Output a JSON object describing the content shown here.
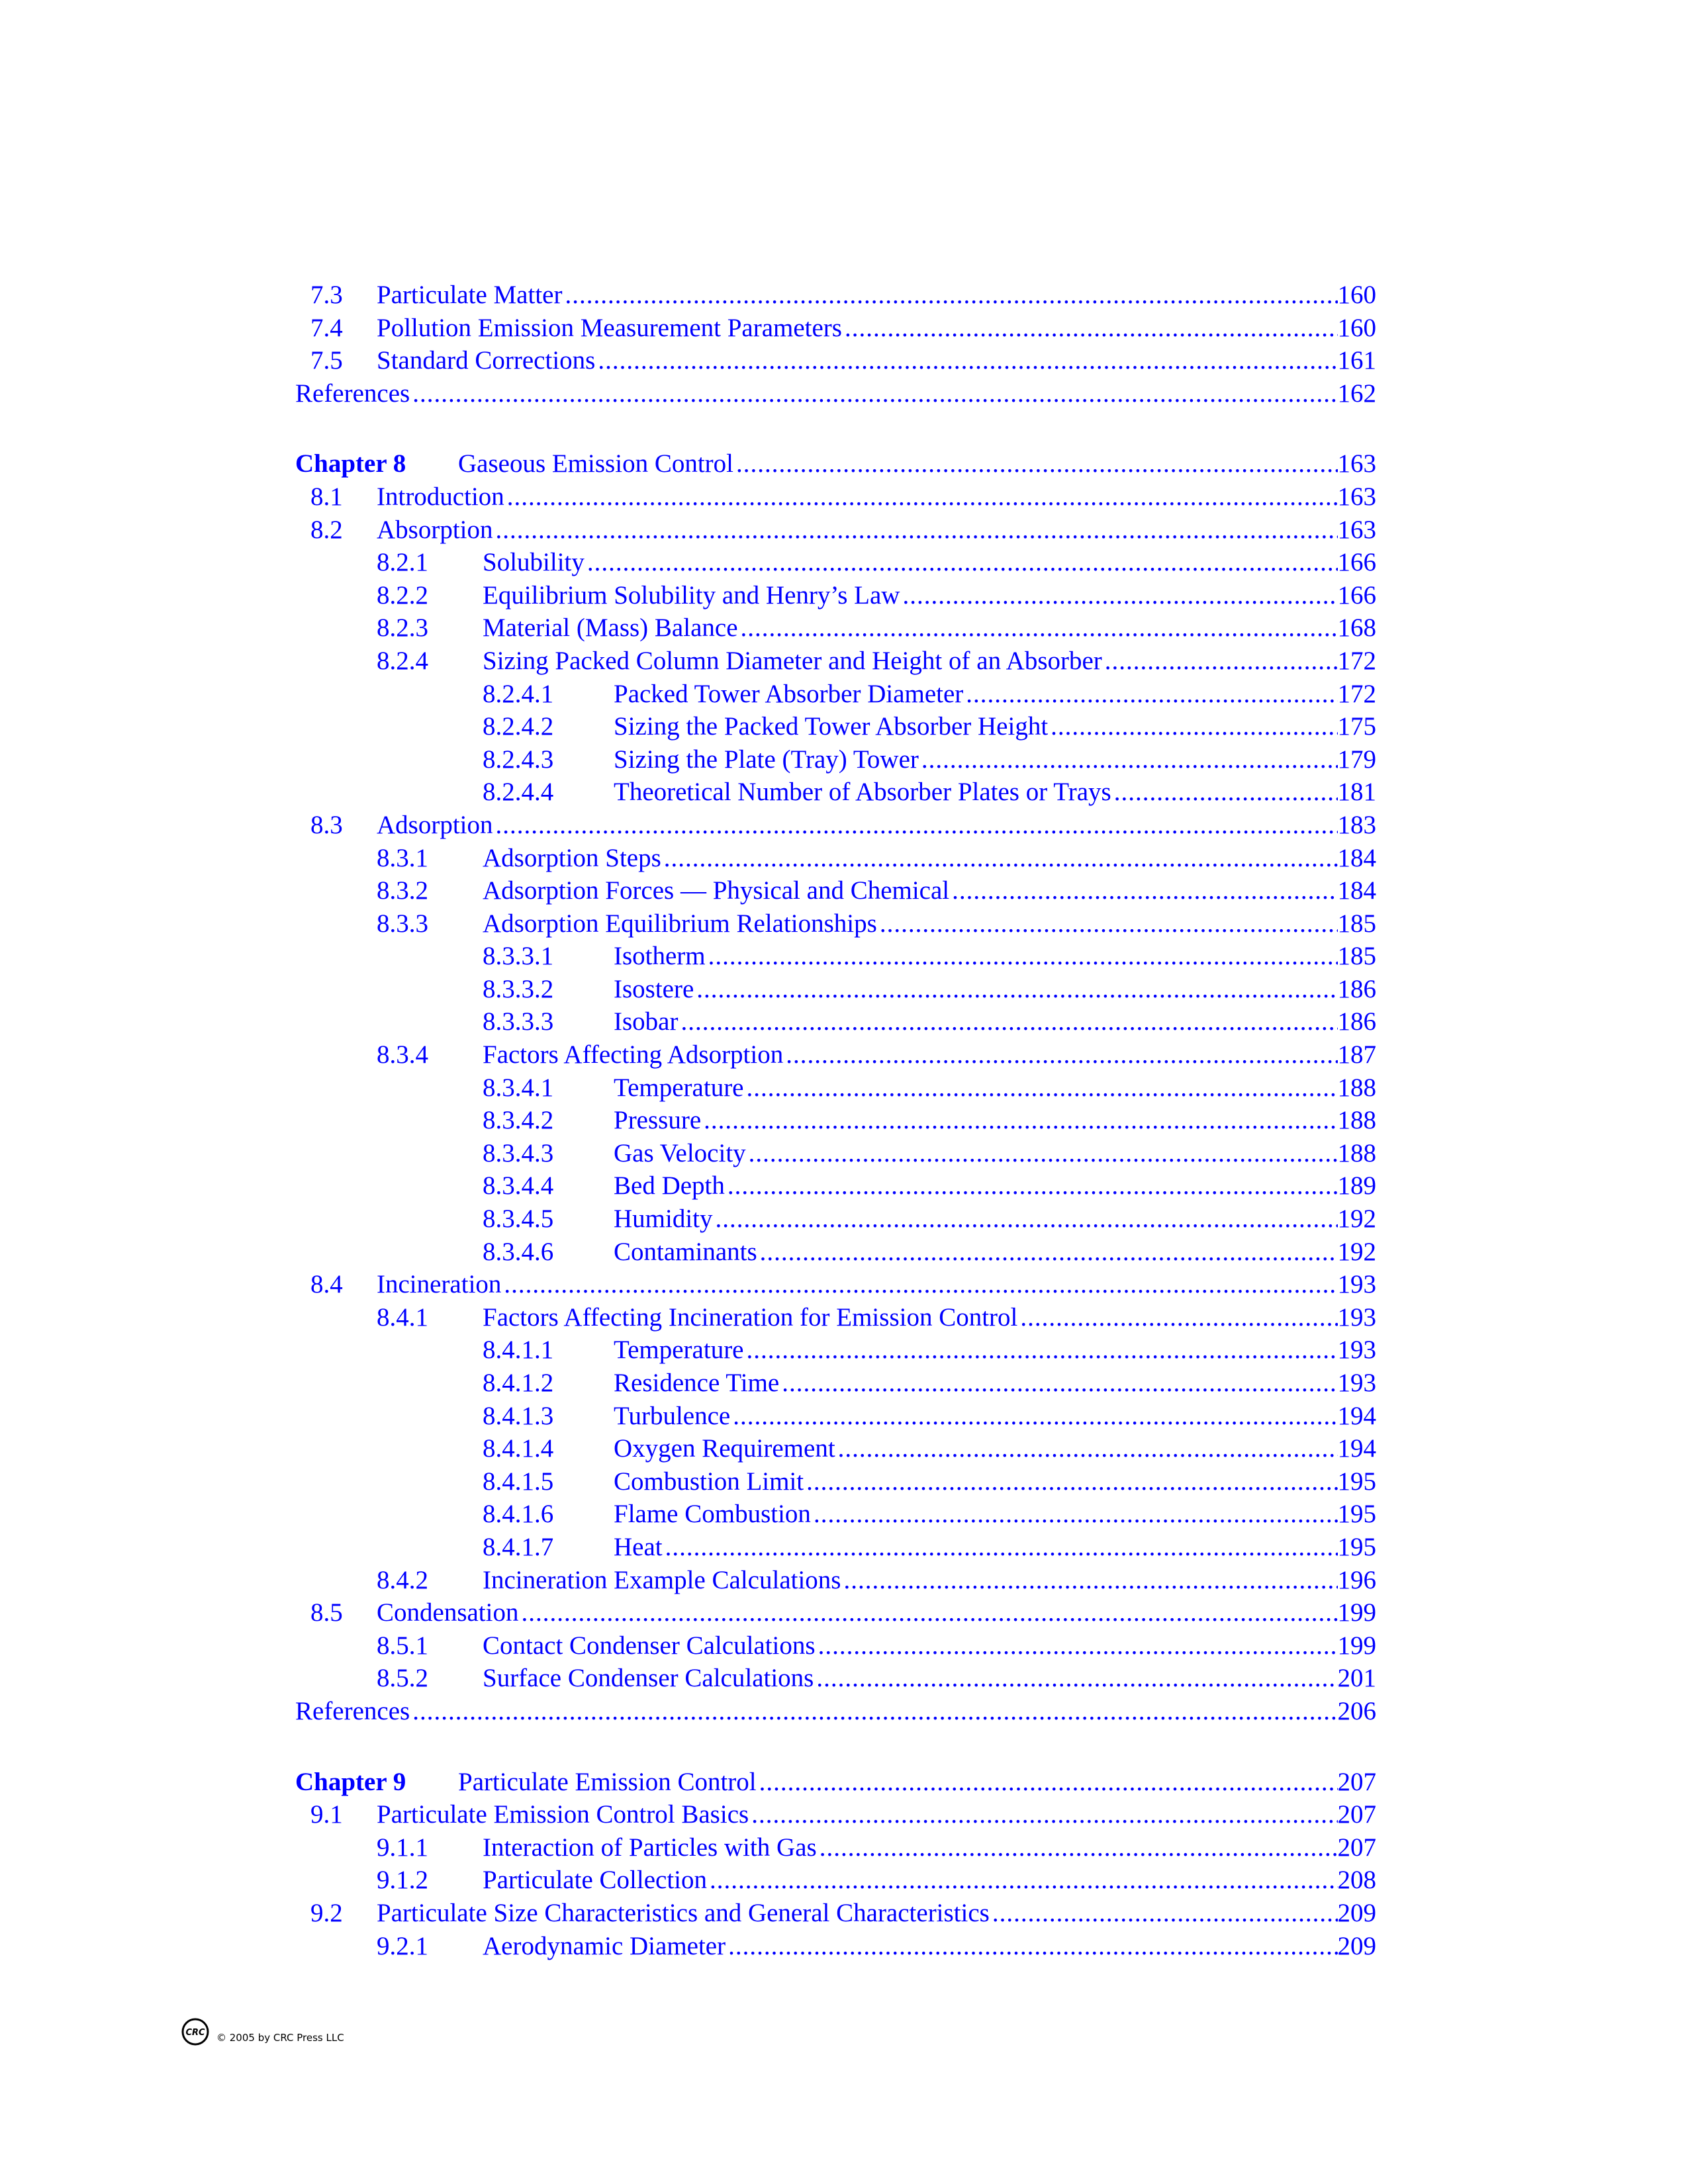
{
  "toc": [
    {
      "level": "l1",
      "num": "7.3",
      "title": "Particulate Matter",
      "page": "160"
    },
    {
      "level": "l1",
      "num": "7.4",
      "title": "Pollution Emission Measurement Parameters",
      "page": "160"
    },
    {
      "level": "l1",
      "num": "7.5",
      "title": "Standard Corrections",
      "page": "161"
    },
    {
      "level": "ref",
      "num": "",
      "title": "References",
      "page": "162"
    },
    {
      "level": "chap",
      "num": "Chapter 8",
      "title": "Gaseous Emission Control",
      "page": "163"
    },
    {
      "level": "l1",
      "num": "8.1",
      "title": "Introduction",
      "page": "163"
    },
    {
      "level": "l1",
      "num": "8.2",
      "title": "Absorption",
      "page": "163"
    },
    {
      "level": "l2",
      "num": "8.2.1",
      "title": "Solubility",
      "page": "166"
    },
    {
      "level": "l2",
      "num": "8.2.2",
      "title": "Equilibrium Solubility and Henry’s Law",
      "page": "166"
    },
    {
      "level": "l2",
      "num": "8.2.3",
      "title": "Material (Mass) Balance",
      "page": "168"
    },
    {
      "level": "l2",
      "num": "8.2.4",
      "title": "Sizing Packed Column Diameter and Height of an Absorber",
      "page": "172"
    },
    {
      "level": "l3",
      "num": "8.2.4.1",
      "title": "Packed Tower Absorber Diameter",
      "page": "172"
    },
    {
      "level": "l3",
      "num": "8.2.4.2",
      "title": "Sizing the Packed Tower Absorber Height",
      "page": "175"
    },
    {
      "level": "l3",
      "num": "8.2.4.3",
      "title": "Sizing the Plate (Tray) Tower",
      "page": "179"
    },
    {
      "level": "l3",
      "num": "8.2.4.4",
      "title": "Theoretical Number of Absorber Plates or Trays",
      "page": "181"
    },
    {
      "level": "l1",
      "num": "8.3",
      "title": "Adsorption",
      "page": "183"
    },
    {
      "level": "l2",
      "num": "8.3.1",
      "title": "Adsorption Steps",
      "page": "184"
    },
    {
      "level": "l2",
      "num": "8.3.2",
      "title": "Adsorption Forces — Physical and Chemical",
      "page": "184"
    },
    {
      "level": "l2",
      "num": "8.3.3",
      "title": "Adsorption Equilibrium Relationships",
      "page": "185"
    },
    {
      "level": "l3",
      "num": "8.3.3.1",
      "title": "Isotherm",
      "page": "185"
    },
    {
      "level": "l3",
      "num": "8.3.3.2",
      "title": "Isostere",
      "page": "186"
    },
    {
      "level": "l3",
      "num": "8.3.3.3",
      "title": "Isobar",
      "page": "186"
    },
    {
      "level": "l2",
      "num": "8.3.4",
      "title": "Factors Affecting Adsorption",
      "page": "187"
    },
    {
      "level": "l3",
      "num": "8.3.4.1",
      "title": "Temperature",
      "page": "188"
    },
    {
      "level": "l3",
      "num": "8.3.4.2",
      "title": "Pressure",
      "page": "188"
    },
    {
      "level": "l3",
      "num": "8.3.4.3",
      "title": "Gas Velocity",
      "page": "188"
    },
    {
      "level": "l3",
      "num": "8.3.4.4",
      "title": "Bed Depth",
      "page": "189"
    },
    {
      "level": "l3",
      "num": "8.3.4.5",
      "title": "Humidity",
      "page": "192"
    },
    {
      "level": "l3",
      "num": "8.3.4.6",
      "title": "Contaminants",
      "page": "192"
    },
    {
      "level": "l1",
      "num": "8.4",
      "title": "Incineration",
      "page": "193"
    },
    {
      "level": "l2",
      "num": "8.4.1",
      "title": "Factors Affecting Incineration for Emission Control",
      "page": "193"
    },
    {
      "level": "l3",
      "num": "8.4.1.1",
      "title": "Temperature",
      "page": "193"
    },
    {
      "level": "l3",
      "num": "8.4.1.2",
      "title": "Residence Time",
      "page": "193"
    },
    {
      "level": "l3",
      "num": "8.4.1.3",
      "title": "Turbulence",
      "page": "194"
    },
    {
      "level": "l3",
      "num": "8.4.1.4",
      "title": "Oxygen Requirement",
      "page": "194"
    },
    {
      "level": "l3",
      "num": "8.4.1.5",
      "title": "Combustion Limit",
      "page": "195"
    },
    {
      "level": "l3",
      "num": "8.4.1.6",
      "title": "Flame Combustion",
      "page": "195"
    },
    {
      "level": "l3",
      "num": "8.4.1.7",
      "title": "Heat",
      "page": "195"
    },
    {
      "level": "l2",
      "num": "8.4.2",
      "title": "Incineration Example Calculations",
      "page": "196"
    },
    {
      "level": "l1",
      "num": "8.5",
      "title": "Condensation",
      "page": "199"
    },
    {
      "level": "l2",
      "num": "8.5.1",
      "title": "Contact Condenser Calculations",
      "page": "199"
    },
    {
      "level": "l2",
      "num": "8.5.2",
      "title": "Surface Condenser Calculations",
      "page": "201"
    },
    {
      "level": "ref",
      "num": "",
      "title": "References",
      "page": "206"
    },
    {
      "level": "chap",
      "num": "Chapter 9",
      "title": "Particulate Emission Control",
      "page": "207"
    },
    {
      "level": "l1",
      "num": "9.1",
      "title": "Particulate Emission Control Basics",
      "page": "207"
    },
    {
      "level": "l2",
      "num": "9.1.1",
      "title": "Interaction of Particles with Gas",
      "page": "207"
    },
    {
      "level": "l2",
      "num": "9.1.2",
      "title": "Particulate Collection",
      "page": "208"
    },
    {
      "level": "l1",
      "num": "9.2",
      "title": "Particulate Size Characteristics and General Characteristics",
      "page": "209"
    },
    {
      "level": "l2",
      "num": "9.2.1",
      "title": "Aerodynamic Diameter",
      "page": "209"
    }
  ],
  "footer": {
    "logo_text": "CRC",
    "copyright": "© 2005 by CRC Press LLC"
  },
  "colors": {
    "text": "#0000ff"
  }
}
